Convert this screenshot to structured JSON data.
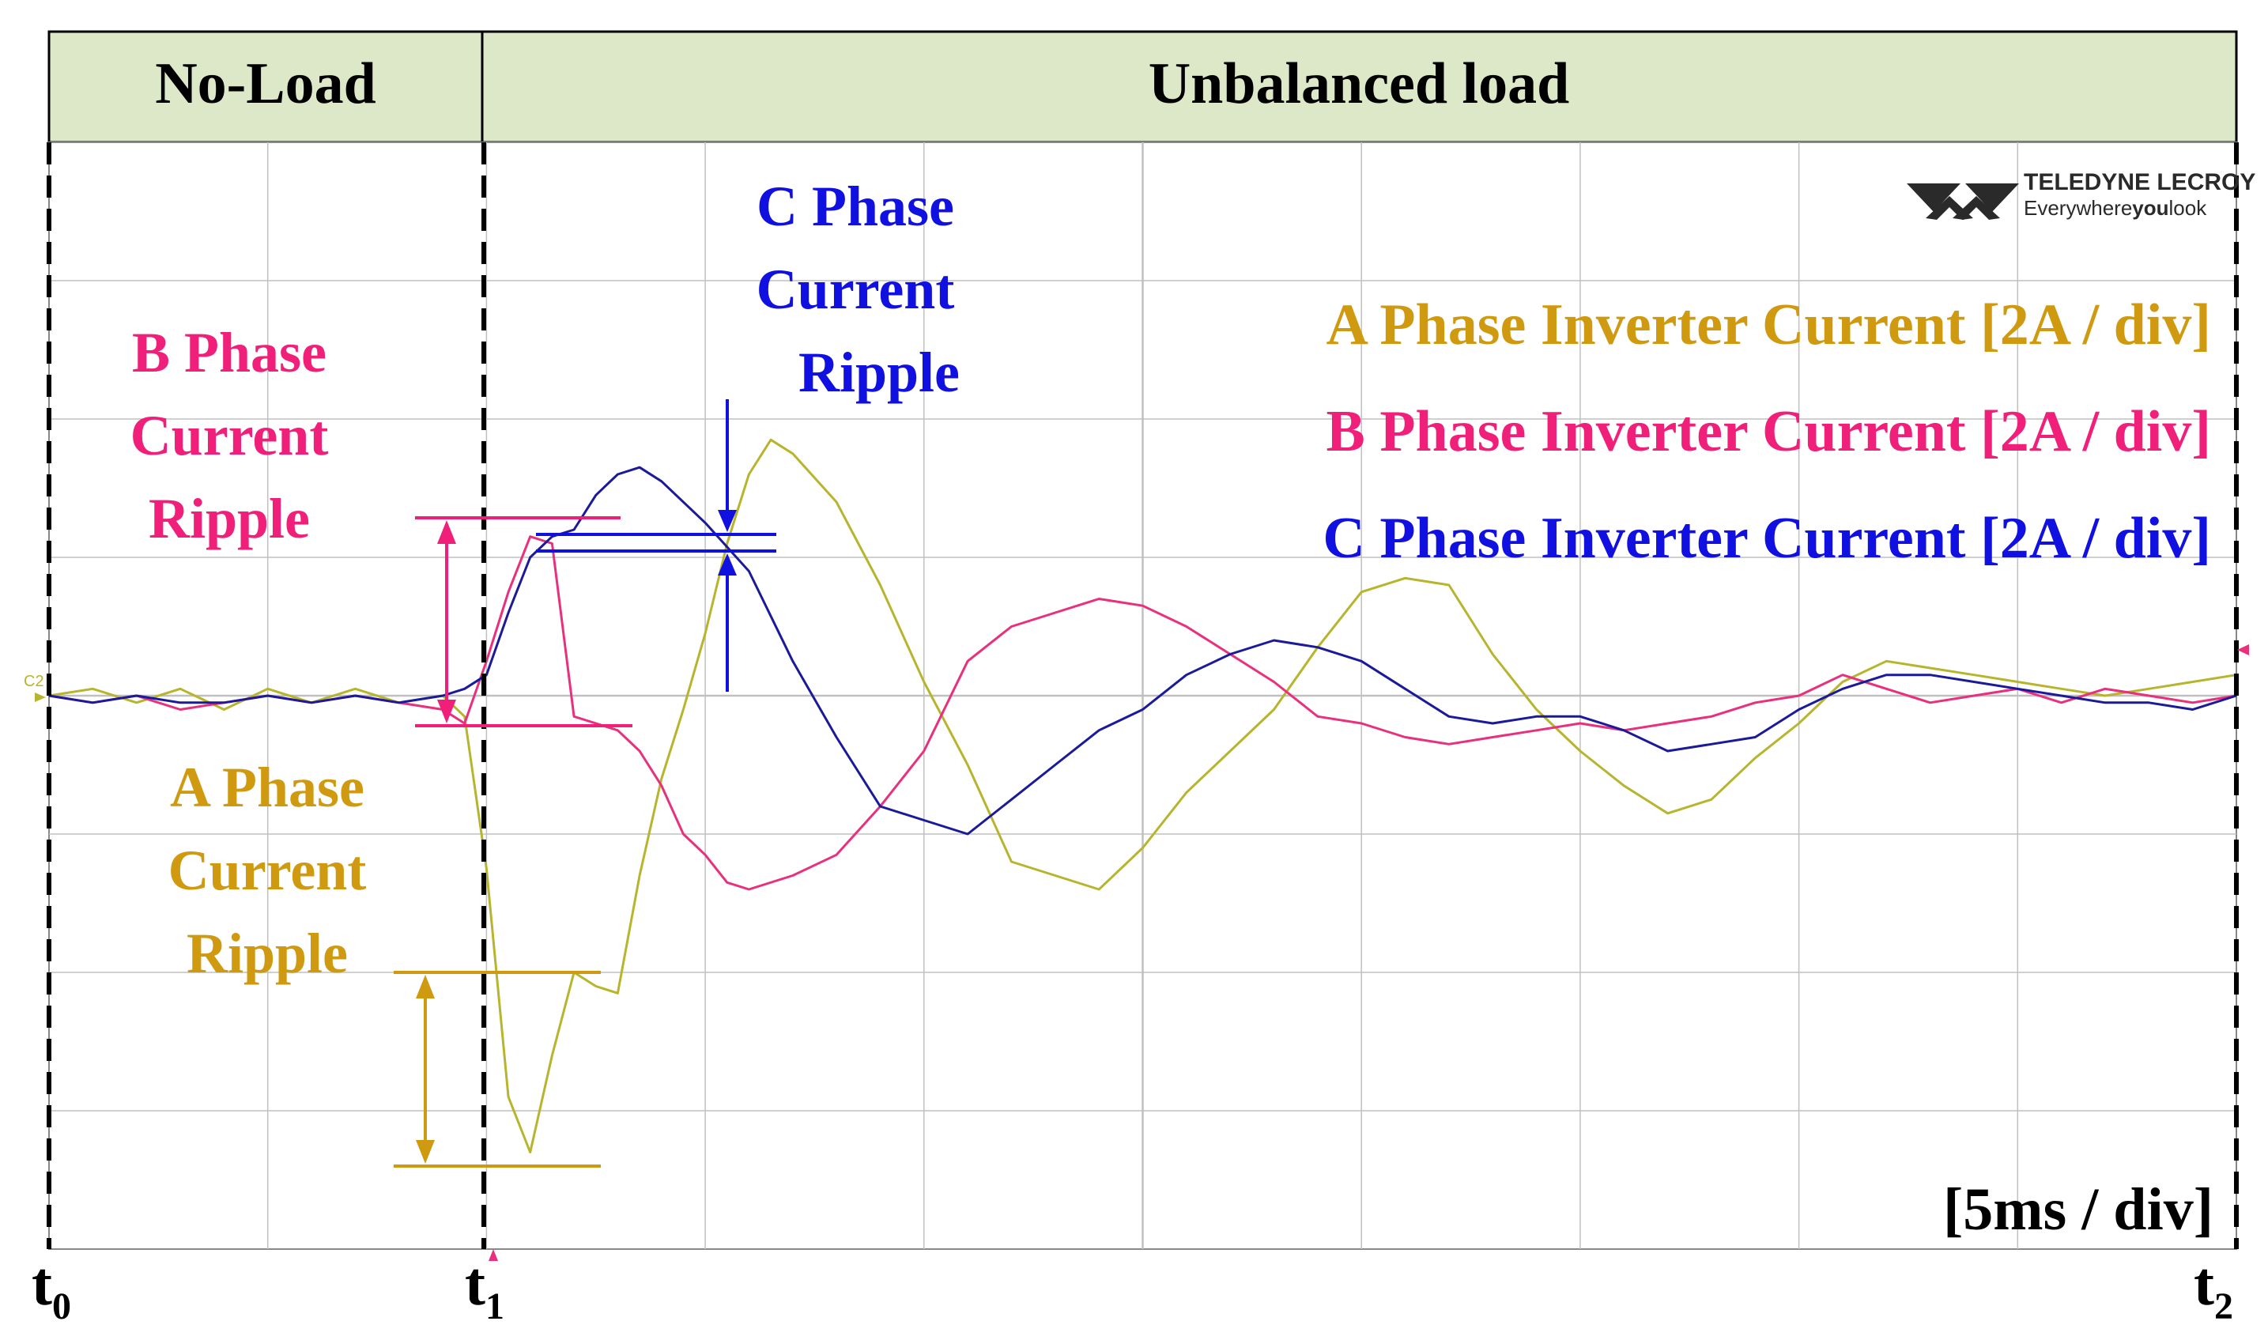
{
  "header": {
    "no_load": "No-Load",
    "unbalanced": "Unbalanced load"
  },
  "logo": {
    "brand": "TELEDYNE LECROY",
    "tagline_1": "Everywhere",
    "tagline_2": "you",
    "tagline_3": "look"
  },
  "channel_marker": "C2",
  "time_markers": {
    "t0": "t",
    "t0_sub": "0",
    "t1": "t",
    "t1_sub": "1",
    "t2": "t",
    "t2_sub": "2"
  },
  "timebase": "[5ms / div]",
  "annotations": {
    "b_ripple": [
      "B Phase",
      "Current",
      "Ripple"
    ],
    "a_ripple": [
      "A Phase",
      "Current",
      "Ripple"
    ],
    "c_ripple": [
      "C Phase",
      "Current",
      "Ripple"
    ]
  },
  "legend": [
    {
      "label": "A Phase Inverter Current [2A / div]",
      "color": "#D09A10"
    },
    {
      "label": "B Phase Inverter Current [2A / div]",
      "color": "#F0207A"
    },
    {
      "label": "C Phase Inverter Current [2A / div]",
      "color": "#1010E0"
    }
  ],
  "colors": {
    "header_bg": "#DDE8C8",
    "a_trace": "#B7B52E",
    "a_text": "#D09A10",
    "b_trace": "#E8307C",
    "b_text": "#F0207A",
    "c_trace": "#1A1A9A",
    "c_text": "#1010E0",
    "grid": "#C0C0C0"
  },
  "chart_data": {
    "type": "line",
    "xlabel": "",
    "ylabel": "",
    "x_unit": "ms",
    "y_unit": "A",
    "xlim": [
      0,
      50
    ],
    "ylim": [
      -8,
      8
    ],
    "grid": true,
    "legend_position": "top-right",
    "series": [
      {
        "name": "A Phase Inverter Current [2A / div]",
        "x": [
          0,
          1,
          2,
          3,
          4,
          5,
          6,
          7,
          8,
          9,
          9.5,
          10,
          10.5,
          11,
          11.5,
          12,
          12.5,
          13,
          13.5,
          14,
          14.5,
          15,
          15.5,
          16,
          16.5,
          17,
          18,
          19,
          20,
          21,
          22,
          23,
          24,
          25,
          26,
          27,
          28,
          29,
          30,
          31,
          32,
          33,
          34,
          35,
          36,
          37,
          38,
          39,
          40,
          41,
          42,
          43,
          44,
          45,
          46,
          47,
          48,
          49,
          50
        ],
        "y": [
          0,
          0.1,
          -0.1,
          0.1,
          -0.2,
          0.1,
          -0.1,
          0.1,
          -0.1,
          0,
          -0.3,
          -2.5,
          -5.8,
          -6.6,
          -5.2,
          -4.0,
          -4.2,
          -4.3,
          -2.6,
          -1.2,
          -0.2,
          0.9,
          2.2,
          3.2,
          3.7,
          3.5,
          2.8,
          1.6,
          0.2,
          -1.0,
          -2.4,
          -2.6,
          -2.8,
          -2.2,
          -1.4,
          -0.8,
          -0.2,
          0.7,
          1.5,
          1.7,
          1.6,
          0.6,
          -0.2,
          -0.8,
          -1.3,
          -1.7,
          -1.5,
          -0.9,
          -0.4,
          0.2,
          0.5,
          0.4,
          0.3,
          0.2,
          0.1,
          0,
          0.1,
          0.2,
          0.3
        ]
      },
      {
        "name": "B Phase Inverter Current [2A / div]",
        "x": [
          0,
          1,
          2,
          3,
          4,
          5,
          6,
          7,
          8,
          9,
          9.5,
          10,
          10.5,
          11,
          11.5,
          12,
          12.5,
          13,
          13.5,
          14,
          14.5,
          15,
          15.5,
          16,
          17,
          18,
          19,
          20,
          21,
          22,
          23,
          24,
          25,
          26,
          27,
          28,
          29,
          30,
          31,
          32,
          33,
          34,
          35,
          36,
          37,
          38,
          39,
          40,
          41,
          42,
          43,
          44,
          45,
          46,
          47,
          48,
          49,
          50
        ],
        "y": [
          0,
          -0.1,
          0,
          -0.2,
          -0.1,
          0,
          -0.1,
          0,
          -0.1,
          -0.2,
          -0.4,
          0.5,
          1.5,
          2.3,
          2.2,
          -0.3,
          -0.4,
          -0.5,
          -0.8,
          -1.3,
          -2.0,
          -2.3,
          -2.7,
          -2.8,
          -2.6,
          -2.3,
          -1.6,
          -0.8,
          0.5,
          1.0,
          1.2,
          1.4,
          1.3,
          1.0,
          0.6,
          0.2,
          -0.3,
          -0.4,
          -0.6,
          -0.7,
          -0.6,
          -0.5,
          -0.4,
          -0.5,
          -0.4,
          -0.3,
          -0.1,
          0,
          0.3,
          0.1,
          -0.1,
          0,
          0.1,
          -0.1,
          0.1,
          0,
          -0.1,
          0
        ]
      },
      {
        "name": "C Phase Inverter Current [2A / div]",
        "x": [
          0,
          1,
          2,
          3,
          4,
          5,
          6,
          7,
          8,
          9,
          9.5,
          10,
          10.5,
          11,
          11.5,
          12,
          12.5,
          13,
          13.5,
          14,
          15,
          16,
          17,
          18,
          19,
          20,
          21,
          22,
          23,
          24,
          25,
          26,
          27,
          28,
          29,
          30,
          31,
          32,
          33,
          34,
          35,
          36,
          37,
          38,
          39,
          40,
          41,
          42,
          43,
          44,
          45,
          46,
          47,
          48,
          49,
          50
        ],
        "y": [
          0,
          -0.1,
          0,
          -0.1,
          -0.1,
          0,
          -0.1,
          0,
          -0.1,
          0,
          0.1,
          0.3,
          1.2,
          2.0,
          2.3,
          2.4,
          2.9,
          3.2,
          3.3,
          3.1,
          2.5,
          1.8,
          0.5,
          -0.6,
          -1.6,
          -1.8,
          -2.0,
          -1.5,
          -1.0,
          -0.5,
          -0.2,
          0.3,
          0.6,
          0.8,
          0.7,
          0.5,
          0.1,
          -0.3,
          -0.4,
          -0.3,
          -0.3,
          -0.5,
          -0.8,
          -0.7,
          -0.6,
          -0.2,
          0.1,
          0.3,
          0.3,
          0.2,
          0.1,
          0,
          -0.1,
          -0.1,
          -0.2,
          0
        ]
      }
    ]
  }
}
